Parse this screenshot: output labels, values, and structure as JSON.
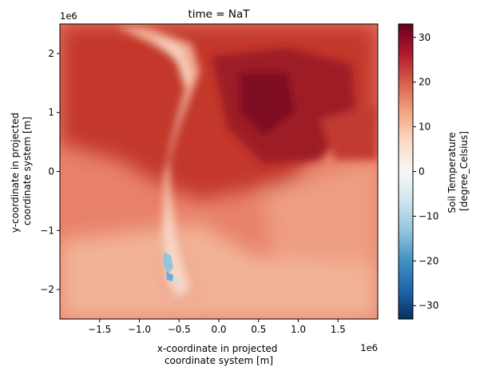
{
  "chart_data": {
    "type": "heatmap",
    "title": "time = NaT",
    "xlabel": [
      "x-coordinate in projected",
      "coordinate system [m]"
    ],
    "ylabel": [
      "y-coordinate in projected",
      "coordinate system [m]"
    ],
    "x_offset_label": "1e6",
    "y_offset_label": "1e6",
    "xlim": [
      -2.0,
      2.0
    ],
    "ylim": [
      -2.5,
      2.5
    ],
    "x_ticks": [
      -1.5,
      -1.0,
      -0.5,
      0.0,
      0.5,
      1.0,
      1.5
    ],
    "x_tick_labels": [
      "−1.5",
      "−1.0",
      "−0.5",
      "0.0",
      "0.5",
      "1.0",
      "1.5"
    ],
    "y_ticks": [
      2,
      1,
      0,
      -1,
      -2
    ],
    "y_tick_labels": [
      "2",
      "1",
      "0",
      "−1",
      "−2"
    ],
    "colorbar": {
      "label": [
        "Soil Temperature",
        "[degree_Celsius]"
      ],
      "vmin": -33,
      "vmax": 33,
      "ticks": [
        30,
        20,
        10,
        0,
        -10,
        -20,
        -30
      ],
      "tick_labels": [
        "30",
        "20",
        "10",
        "0",
        "−10",
        "−20",
        "−30"
      ],
      "colormap": "RdBu_r",
      "colors": [
        "#053061",
        "#2166ac",
        "#4393c3",
        "#92c5de",
        "#d1e5f0",
        "#f7f7f7",
        "#fddbc7",
        "#f4a582",
        "#d6604d",
        "#b2182b",
        "#67001f"
      ]
    },
    "grid": false,
    "field_description": "Soil temperature over South America: warm (20–30°C) across the interior north, cooler (5–15°C) along the Andes and in the south, with sub-zero values at the southern tip of the Andes."
  }
}
